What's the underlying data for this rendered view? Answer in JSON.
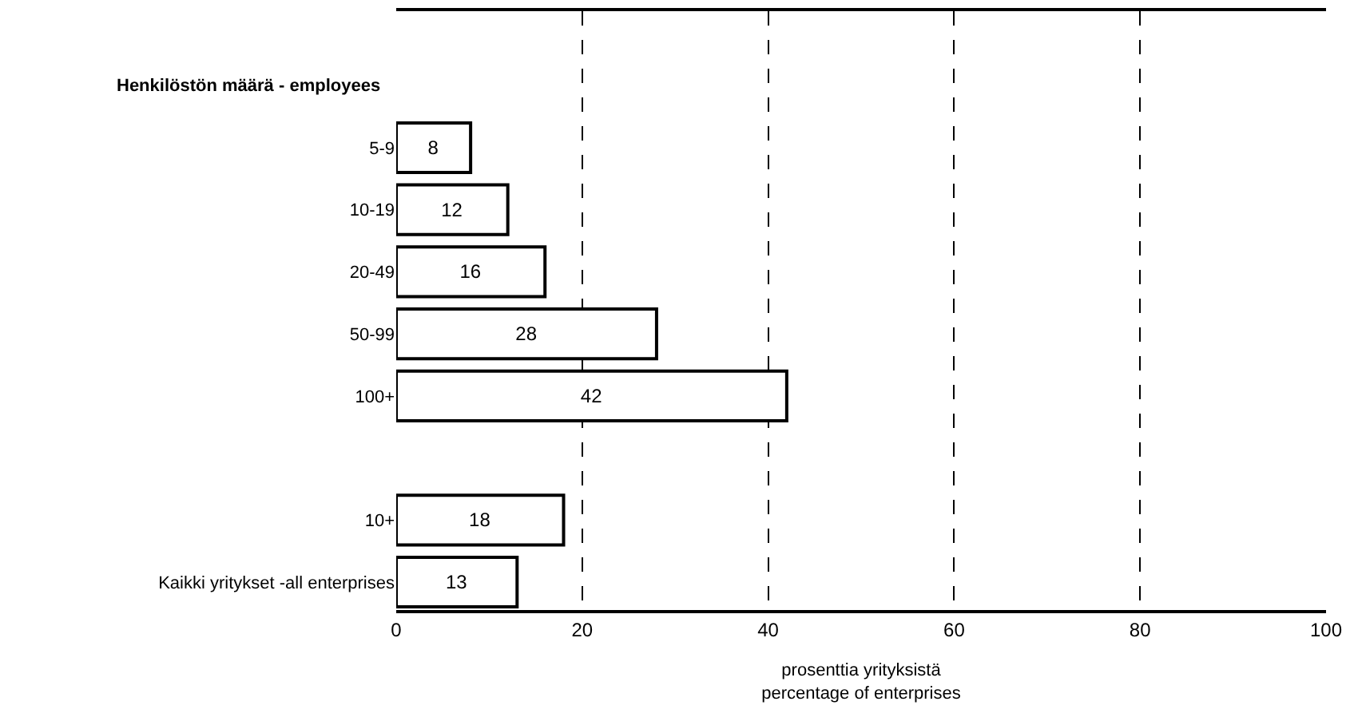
{
  "chart_data": {
    "type": "bar",
    "orientation": "horizontal",
    "ylabel": "Henkilöstön määrä - employees",
    "xlabel": "prosenttia yrityksistä\npercentage of enterprises",
    "categories": [
      "5-9",
      "10-19",
      "20-49",
      "50-99",
      "100+",
      null,
      "10+",
      "Kaikki yritykset -all enterprises"
    ],
    "values": [
      8,
      12,
      16,
      28,
      42,
      null,
      18,
      13
    ],
    "color": "#ffffff",
    "data_labels": true,
    "xlim": [
      0,
      100
    ],
    "xticks": [
      0,
      20,
      40,
      60,
      80,
      100
    ],
    "grid": "x",
    "legend": false
  }
}
